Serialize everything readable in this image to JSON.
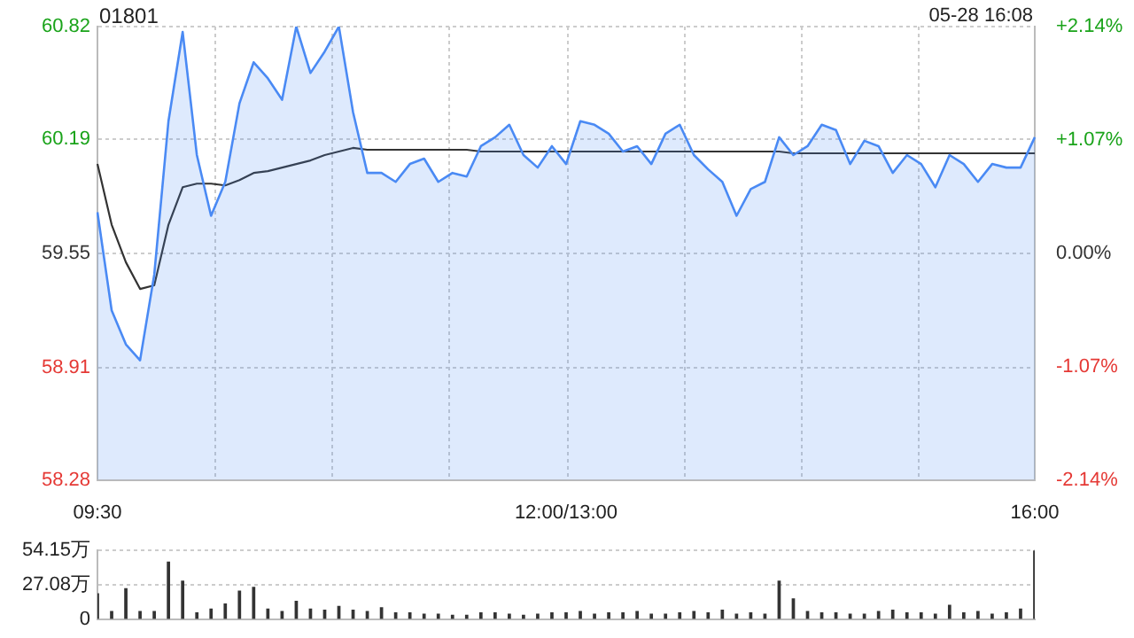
{
  "chart_data": [
    {
      "type": "line",
      "title": "01801",
      "annotations": [
        "05-28 16:08"
      ],
      "grid": true,
      "legend": false,
      "marker": "none",
      "categories": [
        "09:30",
        null,
        null,
        null,
        null,
        null,
        null,
        null,
        null,
        null,
        null,
        null,
        null,
        null,
        null,
        null,
        null,
        null,
        null,
        null,
        null,
        null,
        null,
        null,
        null,
        null,
        null,
        null,
        null,
        null,
        null,
        null,
        null,
        "12:00/13:00",
        null,
        null,
        null,
        null,
        null,
        null,
        null,
        null,
        null,
        null,
        null,
        null,
        null,
        null,
        null,
        null,
        null,
        null,
        null,
        null,
        null,
        null,
        null,
        null,
        null,
        null,
        null,
        null,
        null,
        null,
        null,
        null,
        "16:00"
      ],
      "ylim": [
        58.28,
        60.82
      ],
      "yticks": [
        58.28,
        58.91,
        59.55,
        60.19,
        60.82
      ],
      "y2lim": [
        -2.14,
        2.14
      ],
      "y2ticks": [
        {
          "value": -2.14,
          "label": "-2.14%"
        },
        {
          "value": -1.07,
          "label": "-1.07%"
        },
        {
          "value": 0,
          "label": "0.00%"
        },
        {
          "value": 1.07,
          "label": "+1.07%"
        },
        {
          "value": 2.14,
          "label": "+2.14%"
        }
      ],
      "series": [
        {
          "type": "area",
          "color": "#4a8af4",
          "values": [
            59.78,
            59.23,
            59.04,
            58.95,
            59.43,
            60.29,
            60.79,
            60.1,
            59.76,
            59.95,
            60.39,
            60.62,
            60.53,
            60.41,
            60.82,
            60.56,
            60.68,
            60.82,
            60.34,
            60.0,
            60.0,
            59.95,
            60.05,
            60.08,
            59.95,
            60.0,
            59.98,
            60.15,
            60.2,
            60.27,
            60.1,
            60.03,
            60.15,
            60.05,
            60.29,
            60.27,
            60.22,
            60.12,
            60.15,
            60.05,
            60.22,
            60.27,
            60.1,
            60.02,
            59.95,
            59.76,
            59.91,
            59.95,
            60.2,
            60.1,
            60.15,
            60.27,
            60.24,
            60.05,
            60.18,
            60.15,
            60.0,
            60.1,
            60.05,
            59.92,
            60.1,
            60.05,
            59.95,
            60.05,
            60.03,
            60.03,
            60.2
          ]
        },
        {
          "type": "line",
          "color": "#333333",
          "values": [
            60.05,
            59.71,
            59.5,
            59.35,
            59.37,
            59.71,
            59.92,
            59.94,
            59.94,
            59.93,
            59.96,
            60.0,
            60.01,
            60.03,
            60.05,
            60.07,
            60.1,
            60.12,
            60.14,
            60.13,
            60.13,
            60.13,
            60.13,
            60.13,
            60.13,
            60.13,
            60.13,
            60.12,
            60.12,
            60.12,
            60.12,
            60.12,
            60.12,
            60.12,
            60.12,
            60.12,
            60.12,
            60.12,
            60.12,
            60.12,
            60.12,
            60.12,
            60.12,
            60.12,
            60.12,
            60.12,
            60.12,
            60.12,
            60.12,
            60.11,
            60.11,
            60.11,
            60.11,
            60.11,
            60.11,
            60.11,
            60.11,
            60.11,
            60.11,
            60.11,
            60.11,
            60.11,
            60.11,
            60.11,
            60.11,
            60.11,
            60.11
          ]
        }
      ]
    },
    {
      "type": "bar",
      "color": "#333333",
      "grid": "y",
      "legend": false,
      "tick_labels": "y",
      "categories": [
        null,
        null,
        null,
        null,
        null,
        null,
        null,
        null,
        null,
        null,
        null,
        null,
        null,
        null,
        null,
        null,
        null,
        null,
        null,
        null,
        null,
        null,
        null,
        null,
        null,
        null,
        null,
        null,
        null,
        null,
        null,
        null,
        null,
        null,
        null,
        null,
        null,
        null,
        null,
        null,
        null,
        null,
        null,
        null,
        null,
        null,
        null,
        null,
        null,
        null,
        null,
        null,
        null,
        null,
        null,
        null,
        null,
        null,
        null,
        null,
        null,
        null,
        null,
        null,
        null,
        null,
        null
      ],
      "ylim": [
        0,
        54.15
      ],
      "yticks": [
        {
          "value": 0,
          "label": "0"
        },
        {
          "value": 27.08,
          "label": "27.08万"
        },
        {
          "value": 54.15,
          "label": "54.15万"
        }
      ],
      "values": [
        20,
        6,
        24,
        6,
        6,
        45,
        30,
        5,
        8,
        12,
        22,
        25,
        8,
        6,
        14,
        8,
        7,
        10,
        7,
        6,
        9,
        5,
        5,
        4,
        4,
        3,
        3,
        5,
        5,
        4,
        3,
        4,
        5,
        5,
        6,
        4,
        5,
        5,
        6,
        4,
        4,
        5,
        6,
        5,
        7,
        4,
        5,
        4,
        30,
        16,
        6,
        5,
        5,
        4,
        4,
        6,
        7,
        5,
        5,
        4,
        11,
        5,
        6,
        4,
        5,
        8,
        54
      ]
    }
  ]
}
